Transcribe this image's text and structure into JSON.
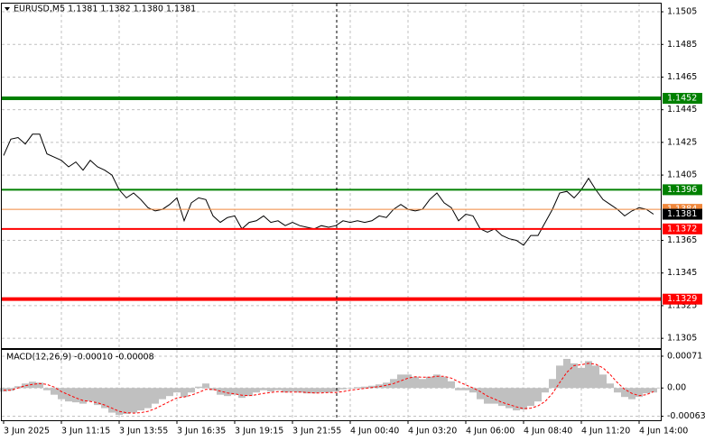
{
  "chart_data": [
    {
      "type": "line",
      "title": "EURUSD,M5  1.1381 1.1382 1.1380 1.1381",
      "categories": [
        "3 Jun 2025",
        null,
        null,
        null,
        null,
        null,
        null,
        null,
        "3 Jun 11:15",
        null,
        null,
        null,
        null,
        null,
        null,
        null,
        "3 Jun 13:55",
        null,
        null,
        null,
        null,
        null,
        null,
        null,
        "3 Jun 16:35",
        null,
        null,
        null,
        null,
        null,
        null,
        null,
        "3 Jun 19:15",
        null,
        null,
        null,
        null,
        null,
        null,
        null,
        "3 Jun 21:55",
        null,
        null,
        null,
        null,
        null,
        null,
        null,
        "4 Jun 00:40",
        null,
        null,
        null,
        null,
        null,
        null,
        null,
        "4 Jun 03:20",
        null,
        null,
        null,
        null,
        null,
        null,
        null,
        "4 Jun 06:00",
        null,
        null,
        null,
        null,
        null,
        null,
        null,
        "4 Jun 08:40",
        null,
        null,
        null,
        null,
        null,
        null,
        null,
        "4 Jun 11:20",
        null,
        null,
        null,
        null,
        null,
        null,
        null,
        "4 Jun 14:00",
        null,
        null
      ],
      "values": [
        1.1417,
        1.1427,
        1.1428,
        1.1424,
        1.143,
        1.143,
        1.1418,
        1.1416,
        1.1414,
        1.141,
        1.1413,
        1.1408,
        1.1414,
        1.141,
        1.1408,
        1.1405,
        1.1396,
        1.1391,
        1.1394,
        1.139,
        1.1385,
        1.1383,
        1.1384,
        1.1387,
        1.1391,
        1.1377,
        1.1388,
        1.1391,
        1.139,
        1.138,
        1.1376,
        1.1379,
        1.138,
        1.1372,
        1.1376,
        1.1377,
        1.138,
        1.1376,
        1.1377,
        1.1374,
        1.1376,
        1.1374,
        1.1373,
        1.1372,
        1.1374,
        1.1373,
        1.1374,
        1.1377,
        1.1376,
        1.1377,
        1.1376,
        1.1377,
        1.138,
        1.1379,
        1.1384,
        1.1387,
        1.1384,
        1.1383,
        1.1384,
        1.139,
        1.1394,
        1.1388,
        1.1385,
        1.1377,
        1.1381,
        1.138,
        1.1372,
        1.137,
        1.1372,
        1.1368,
        1.1366,
        1.1365,
        1.1362,
        1.1368,
        1.1368,
        1.1376,
        1.1384,
        1.1394,
        1.1395,
        1.1391,
        1.1396,
        1.1403,
        1.1396,
        1.139,
        1.1387,
        1.1384,
        1.138,
        1.1383,
        1.1385,
        1.1384,
        1.1381
      ],
      "color": "#000000",
      "ylim": [
        1.1299,
        1.151
      ],
      "yticks": [
        1.1505,
        1.1485,
        1.1465,
        1.1445,
        1.1425,
        1.1405,
        1.1365,
        1.1345,
        1.1325,
        1.1305
      ],
      "grid": true,
      "levels": [
        {
          "value": 1.1452,
          "color": "#008000",
          "linewidth": 4
        },
        {
          "value": 1.1396,
          "color": "#008000",
          "linewidth": 2
        },
        {
          "value": 1.1384,
          "color": "#f0883c",
          "linewidth": 1
        },
        {
          "value": 1.1372,
          "color": "#ff0000",
          "linewidth": 2
        },
        {
          "value": 1.1329,
          "color": "#ff0000",
          "linewidth": 4
        }
      ],
      "last_price": {
        "value": 1.1381,
        "color": "#000000"
      }
    },
    {
      "type": "bar",
      "title": "MACD(12,26,9) -0.00010 -0.00008",
      "values": [
        -8e-05,
        -6e-05,
        4e-05,
        0.0001,
        0.00014,
        0.00012,
        -5e-05,
        -0.00015,
        -0.00025,
        -0.0003,
        -0.00032,
        -0.00035,
        -0.0003,
        -0.00038,
        -0.00045,
        -0.00055,
        -0.0006,
        -0.00058,
        -0.00055,
        -0.0005,
        -0.00045,
        -0.00035,
        -0.00025,
        -0.00018,
        -0.0001,
        -0.0002,
        -0.0001,
        3e-05,
        0.0001,
        -5e-05,
        -0.00015,
        -0.00018,
        -0.00015,
        -0.00022,
        -0.00018,
        -0.0001,
        -5e-05,
        -8e-05,
        -5e-05,
        -0.0001,
        -8e-05,
        -0.0001,
        -0.00012,
        -0.00012,
        -0.0001,
        -0.0001,
        -8e-05,
        -3e-05,
        0,
        2e-05,
        3e-05,
        5e-05,
        8e-05,
        0.00012,
        0.0002,
        0.0003,
        0.0003,
        0.00025,
        0.0002,
        0.00025,
        0.0003,
        0.00025,
        0.00015,
        -5e-05,
        -5e-05,
        -0.0001,
        -0.00025,
        -0.00035,
        -0.00035,
        -0.0004,
        -0.00045,
        -0.0005,
        -0.00048,
        -0.0004,
        -0.0003,
        -0.0001,
        0.0002,
        0.0005,
        0.00065,
        0.00055,
        0.00045,
        0.0006,
        0.0005,
        0.0003,
        0.0001,
        -0.0001,
        -0.0002,
        -0.00025,
        -0.0002,
        -0.00012,
        -0.0001
      ],
      "color": "#c0c0c0",
      "signal": {
        "color": "#ff0000",
        "values": [
          -5e-05,
          -5e-05,
          0,
          5e-05,
          8e-05,
          0.0001,
          8e-05,
          2e-05,
          -8e-05,
          -0.00015,
          -0.00022,
          -0.00028,
          -0.0003,
          -0.00033,
          -0.00038,
          -0.00045,
          -0.00052,
          -0.00055,
          -0.00056,
          -0.00055,
          -0.00052,
          -0.00046,
          -0.00038,
          -0.0003,
          -0.00022,
          -0.0002,
          -0.00016,
          -0.0001,
          -3e-05,
          -3e-05,
          -7e-05,
          -0.00011,
          -0.00013,
          -0.00016,
          -0.00017,
          -0.00015,
          -0.00012,
          -0.0001,
          -8e-05,
          -9e-05,
          -9e-05,
          -9e-05,
          -0.0001,
          -0.00011,
          -0.00011,
          -0.0001,
          -0.0001,
          -8e-05,
          -5e-05,
          -3e-05,
          -1e-05,
          1e-05,
          3e-05,
          6e-05,
          0.0001,
          0.00016,
          0.00022,
          0.00025,
          0.00024,
          0.00024,
          0.00026,
          0.00026,
          0.00022,
          0.00014,
          7e-05,
          0,
          -8e-05,
          -0.00018,
          -0.00025,
          -0.00032,
          -0.00037,
          -0.00042,
          -0.00046,
          -0.00045,
          -0.0004,
          -0.0003,
          -0.00012,
          0.00012,
          0.00035,
          0.0005,
          0.00052,
          0.00055,
          0.00053,
          0.00045,
          0.0003,
          0.00012,
          -3e-05,
          -0.00012,
          -0.00017,
          -0.00015,
          -8e-05
        ]
      },
      "ylim": [
        -0.00072,
        0.00085
      ],
      "yticks": [
        0.00071,
        {
          "value": 0,
          "label": "0.00"
        },
        -0.00063
      ],
      "grid": true
    }
  ]
}
